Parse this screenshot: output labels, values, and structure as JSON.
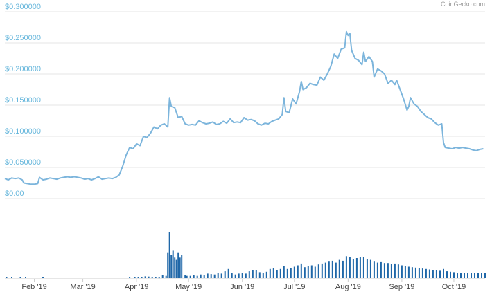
{
  "credit": "CoinGecko.com",
  "colors": {
    "price_line": "#7cb5dc",
    "volume_bar": "#1f67a8",
    "y_label": "#67b7dc",
    "grid": "#e6e6e6"
  },
  "chart_data": {
    "type": "line",
    "title": "",
    "xlabel": "",
    "ylabel": "",
    "x_range": [
      "2019-01-15",
      "2019-10-19"
    ],
    "ylim": [
      0,
      0.3
    ],
    "y_ticks": [
      "$0.00",
      "$0.050000",
      "$0.100000",
      "$0.150000",
      "$0.200000",
      "$0.250000",
      "$0.300000"
    ],
    "y_tick_values": [
      0,
      0.05,
      0.1,
      0.15,
      0.2,
      0.25,
      0.3
    ],
    "x_ticks": [
      {
        "label": "Feb '19",
        "date": "2019-02-01"
      },
      {
        "label": "Mar '19",
        "date": "2019-03-01"
      },
      {
        "label": "Apr '19",
        "date": "2019-04-01"
      },
      {
        "label": "May '19",
        "date": "2019-05-01"
      },
      {
        "label": "Jun '19",
        "date": "2019-06-01"
      },
      {
        "label": "Jul '19",
        "date": "2019-07-01"
      },
      {
        "label": "Aug '19",
        "date": "2019-08-01"
      },
      {
        "label": "Sep '19",
        "date": "2019-09-01"
      },
      {
        "label": "Oct '19",
        "date": "2019-10-01"
      }
    ],
    "grid": true,
    "series": [
      {
        "type": "line",
        "points": [
          [
            "2019-01-15",
            0.032
          ],
          [
            "2019-01-17",
            0.03
          ],
          [
            "2019-01-19",
            0.033
          ],
          [
            "2019-01-21",
            0.032
          ],
          [
            "2019-01-23",
            0.033
          ],
          [
            "2019-01-25",
            0.03
          ],
          [
            "2019-01-26",
            0.025
          ],
          [
            "2019-01-28",
            0.024
          ],
          [
            "2019-01-30",
            0.023
          ],
          [
            "2019-02-01",
            0.023
          ],
          [
            "2019-02-03",
            0.024
          ],
          [
            "2019-02-04",
            0.034
          ],
          [
            "2019-02-06",
            0.03
          ],
          [
            "2019-02-08",
            0.031
          ],
          [
            "2019-02-10",
            0.033
          ],
          [
            "2019-02-12",
            0.032
          ],
          [
            "2019-02-14",
            0.031
          ],
          [
            "2019-02-16",
            0.033
          ],
          [
            "2019-02-18",
            0.034
          ],
          [
            "2019-02-20",
            0.035
          ],
          [
            "2019-02-22",
            0.034
          ],
          [
            "2019-02-24",
            0.035
          ],
          [
            "2019-02-26",
            0.034
          ],
          [
            "2019-02-28",
            0.033
          ],
          [
            "2019-03-02",
            0.031
          ],
          [
            "2019-03-04",
            0.032
          ],
          [
            "2019-03-06",
            0.03
          ],
          [
            "2019-03-08",
            0.032
          ],
          [
            "2019-03-10",
            0.035
          ],
          [
            "2019-03-12",
            0.031
          ],
          [
            "2019-03-14",
            0.032
          ],
          [
            "2019-03-16",
            0.033
          ],
          [
            "2019-03-18",
            0.032
          ],
          [
            "2019-03-20",
            0.034
          ],
          [
            "2019-03-22",
            0.038
          ],
          [
            "2019-03-24",
            0.052
          ],
          [
            "2019-03-26",
            0.07
          ],
          [
            "2019-03-28",
            0.082
          ],
          [
            "2019-03-30",
            0.08
          ],
          [
            "2019-04-01",
            0.088
          ],
          [
            "2019-04-03",
            0.085
          ],
          [
            "2019-04-05",
            0.1
          ],
          [
            "2019-04-07",
            0.098
          ],
          [
            "2019-04-09",
            0.105
          ],
          [
            "2019-04-11",
            0.115
          ],
          [
            "2019-04-13",
            0.112
          ],
          [
            "2019-04-15",
            0.118
          ],
          [
            "2019-04-17",
            0.12
          ],
          [
            "2019-04-19",
            0.115
          ],
          [
            "2019-04-20",
            0.162
          ],
          [
            "2019-04-21",
            0.148
          ],
          [
            "2019-04-23",
            0.146
          ],
          [
            "2019-04-25",
            0.13
          ],
          [
            "2019-04-27",
            0.132
          ],
          [
            "2019-04-29",
            0.12
          ],
          [
            "2019-05-01",
            0.118
          ],
          [
            "2019-05-03",
            0.119
          ],
          [
            "2019-05-05",
            0.118
          ],
          [
            "2019-05-07",
            0.125
          ],
          [
            "2019-05-09",
            0.122
          ],
          [
            "2019-05-11",
            0.12
          ],
          [
            "2019-05-13",
            0.121
          ],
          [
            "2019-05-15",
            0.123
          ],
          [
            "2019-05-17",
            0.119
          ],
          [
            "2019-05-19",
            0.12
          ],
          [
            "2019-05-21",
            0.124
          ],
          [
            "2019-05-23",
            0.121
          ],
          [
            "2019-05-25",
            0.128
          ],
          [
            "2019-05-27",
            0.122
          ],
          [
            "2019-05-29",
            0.123
          ],
          [
            "2019-05-31",
            0.122
          ],
          [
            "2019-06-02",
            0.13
          ],
          [
            "2019-06-04",
            0.126
          ],
          [
            "2019-06-06",
            0.127
          ],
          [
            "2019-06-08",
            0.125
          ],
          [
            "2019-06-10",
            0.12
          ],
          [
            "2019-06-12",
            0.118
          ],
          [
            "2019-06-14",
            0.121
          ],
          [
            "2019-06-16",
            0.12
          ],
          [
            "2019-06-18",
            0.124
          ],
          [
            "2019-06-20",
            0.126
          ],
          [
            "2019-06-22",
            0.128
          ],
          [
            "2019-06-24",
            0.135
          ],
          [
            "2019-06-25",
            0.162
          ],
          [
            "2019-06-26",
            0.14
          ],
          [
            "2019-06-28",
            0.138
          ],
          [
            "2019-06-30",
            0.16
          ],
          [
            "2019-07-02",
            0.152
          ],
          [
            "2019-07-04",
            0.172
          ],
          [
            "2019-07-05",
            0.188
          ],
          [
            "2019-07-06",
            0.175
          ],
          [
            "2019-07-08",
            0.178
          ],
          [
            "2019-07-10",
            0.185
          ],
          [
            "2019-07-12",
            0.183
          ],
          [
            "2019-07-14",
            0.182
          ],
          [
            "2019-07-16",
            0.195
          ],
          [
            "2019-07-18",
            0.19
          ],
          [
            "2019-07-20",
            0.2
          ],
          [
            "2019-07-22",
            0.212
          ],
          [
            "2019-07-24",
            0.232
          ],
          [
            "2019-07-26",
            0.225
          ],
          [
            "2019-07-28",
            0.24
          ],
          [
            "2019-07-30",
            0.242
          ],
          [
            "2019-07-31",
            0.268
          ],
          [
            "2019-08-01",
            0.262
          ],
          [
            "2019-08-02",
            0.265
          ],
          [
            "2019-08-03",
            0.238
          ],
          [
            "2019-08-05",
            0.225
          ],
          [
            "2019-08-07",
            0.222
          ],
          [
            "2019-08-09",
            0.215
          ],
          [
            "2019-08-10",
            0.235
          ],
          [
            "2019-08-11",
            0.22
          ],
          [
            "2019-08-13",
            0.228
          ],
          [
            "2019-08-15",
            0.22
          ],
          [
            "2019-08-16",
            0.195
          ],
          [
            "2019-08-18",
            0.208
          ],
          [
            "2019-08-20",
            0.205
          ],
          [
            "2019-08-22",
            0.2
          ],
          [
            "2019-08-24",
            0.185
          ],
          [
            "2019-08-26",
            0.19
          ],
          [
            "2019-08-28",
            0.183
          ],
          [
            "2019-08-29",
            0.19
          ],
          [
            "2019-08-31",
            0.175
          ],
          [
            "2019-09-02",
            0.16
          ],
          [
            "2019-09-04",
            0.142
          ],
          [
            "2019-09-05",
            0.148
          ],
          [
            "2019-09-06",
            0.162
          ],
          [
            "2019-09-08",
            0.152
          ],
          [
            "2019-09-10",
            0.148
          ],
          [
            "2019-09-12",
            0.14
          ],
          [
            "2019-09-14",
            0.135
          ],
          [
            "2019-09-16",
            0.13
          ],
          [
            "2019-09-18",
            0.128
          ],
          [
            "2019-09-20",
            0.122
          ],
          [
            "2019-09-22",
            0.118
          ],
          [
            "2019-09-24",
            0.12
          ],
          [
            "2019-09-25",
            0.09
          ],
          [
            "2019-09-26",
            0.082
          ],
          [
            "2019-09-28",
            0.081
          ],
          [
            "2019-09-30",
            0.08
          ],
          [
            "2019-10-02",
            0.082
          ],
          [
            "2019-10-04",
            0.081
          ],
          [
            "2019-10-06",
            0.082
          ],
          [
            "2019-10-08",
            0.081
          ],
          [
            "2019-10-10",
            0.08
          ],
          [
            "2019-10-12",
            0.078
          ],
          [
            "2019-10-14",
            0.077
          ],
          [
            "2019-10-16",
            0.079
          ],
          [
            "2019-10-18",
            0.08
          ]
        ]
      }
    ],
    "volume": {
      "type": "bar",
      "bars": [
        [
          "2019-01-16",
          0.01
        ],
        [
          "2019-01-19",
          0.008
        ],
        [
          "2019-01-24",
          0.012
        ],
        [
          "2019-01-27",
          0.006
        ],
        [
          "2019-02-06",
          0.008
        ],
        [
          "2019-03-28",
          0.01
        ],
        [
          "2019-03-31",
          0.008
        ],
        [
          "2019-04-02",
          0.015
        ],
        [
          "2019-04-04",
          0.03
        ],
        [
          "2019-04-06",
          0.04
        ],
        [
          "2019-04-08",
          0.035
        ],
        [
          "2019-04-10",
          0.02
        ],
        [
          "2019-04-12",
          0.02
        ],
        [
          "2019-04-14",
          0.025
        ],
        [
          "2019-04-16",
          0.06
        ],
        [
          "2019-04-18",
          0.05
        ],
        [
          "2019-04-19",
          0.55
        ],
        [
          "2019-04-20",
          1.0
        ],
        [
          "2019-04-21",
          0.5
        ],
        [
          "2019-04-22",
          0.6
        ],
        [
          "2019-04-23",
          0.45
        ],
        [
          "2019-04-24",
          0.4
        ],
        [
          "2019-04-25",
          0.55
        ],
        [
          "2019-04-26",
          0.45
        ],
        [
          "2019-04-27",
          0.5
        ],
        [
          "2019-04-29",
          0.06
        ],
        [
          "2019-04-30",
          0.05
        ],
        [
          "2019-05-02",
          0.05
        ],
        [
          "2019-05-04",
          0.06
        ],
        [
          "2019-05-06",
          0.05
        ],
        [
          "2019-05-08",
          0.08
        ],
        [
          "2019-05-10",
          0.07
        ],
        [
          "2019-05-12",
          0.1
        ],
        [
          "2019-05-14",
          0.09
        ],
        [
          "2019-05-16",
          0.08
        ],
        [
          "2019-05-18",
          0.12
        ],
        [
          "2019-05-20",
          0.1
        ],
        [
          "2019-05-22",
          0.15
        ],
        [
          "2019-05-24",
          0.2
        ],
        [
          "2019-05-26",
          0.12
        ],
        [
          "2019-05-28",
          0.08
        ],
        [
          "2019-05-30",
          0.1
        ],
        [
          "2019-06-01",
          0.12
        ],
        [
          "2019-06-03",
          0.1
        ],
        [
          "2019-06-05",
          0.15
        ],
        [
          "2019-06-07",
          0.17
        ],
        [
          "2019-06-09",
          0.18
        ],
        [
          "2019-06-11",
          0.13
        ],
        [
          "2019-06-13",
          0.12
        ],
        [
          "2019-06-15",
          0.14
        ],
        [
          "2019-06-17",
          0.2
        ],
        [
          "2019-06-19",
          0.22
        ],
        [
          "2019-06-21",
          0.18
        ],
        [
          "2019-06-23",
          0.2
        ],
        [
          "2019-06-25",
          0.26
        ],
        [
          "2019-06-27",
          0.2
        ],
        [
          "2019-06-29",
          0.22
        ],
        [
          "2019-07-01",
          0.25
        ],
        [
          "2019-07-03",
          0.28
        ],
        [
          "2019-07-05",
          0.32
        ],
        [
          "2019-07-07",
          0.24
        ],
        [
          "2019-07-09",
          0.26
        ],
        [
          "2019-07-11",
          0.28
        ],
        [
          "2019-07-13",
          0.25
        ],
        [
          "2019-07-15",
          0.3
        ],
        [
          "2019-07-17",
          0.32
        ],
        [
          "2019-07-19",
          0.34
        ],
        [
          "2019-07-21",
          0.36
        ],
        [
          "2019-07-23",
          0.38
        ],
        [
          "2019-07-25",
          0.34
        ],
        [
          "2019-07-27",
          0.4
        ],
        [
          "2019-07-29",
          0.38
        ],
        [
          "2019-07-31",
          0.48
        ],
        [
          "2019-08-02",
          0.46
        ],
        [
          "2019-08-04",
          0.42
        ],
        [
          "2019-08-06",
          0.44
        ],
        [
          "2019-08-08",
          0.46
        ],
        [
          "2019-08-10",
          0.46
        ],
        [
          "2019-08-12",
          0.42
        ],
        [
          "2019-08-14",
          0.4
        ],
        [
          "2019-08-16",
          0.36
        ],
        [
          "2019-08-18",
          0.34
        ],
        [
          "2019-08-20",
          0.35
        ],
        [
          "2019-08-22",
          0.33
        ],
        [
          "2019-08-24",
          0.33
        ],
        [
          "2019-08-26",
          0.31
        ],
        [
          "2019-08-28",
          0.32
        ],
        [
          "2019-08-30",
          0.3
        ],
        [
          "2019-09-01",
          0.28
        ],
        [
          "2019-09-03",
          0.26
        ],
        [
          "2019-09-05",
          0.25
        ],
        [
          "2019-09-07",
          0.24
        ],
        [
          "2019-09-09",
          0.23
        ],
        [
          "2019-09-11",
          0.22
        ],
        [
          "2019-09-13",
          0.21
        ],
        [
          "2019-09-15",
          0.2
        ],
        [
          "2019-09-17",
          0.19
        ],
        [
          "2019-09-19",
          0.18
        ],
        [
          "2019-09-21",
          0.18
        ],
        [
          "2019-09-23",
          0.16
        ],
        [
          "2019-09-25",
          0.2
        ],
        [
          "2019-09-27",
          0.15
        ],
        [
          "2019-09-29",
          0.14
        ],
        [
          "2019-10-01",
          0.13
        ],
        [
          "2019-10-03",
          0.12
        ],
        [
          "2019-10-05",
          0.12
        ],
        [
          "2019-10-07",
          0.11
        ],
        [
          "2019-10-09",
          0.12
        ],
        [
          "2019-10-11",
          0.11
        ],
        [
          "2019-10-13",
          0.12
        ],
        [
          "2019-10-15",
          0.11
        ],
        [
          "2019-10-17",
          0.11
        ],
        [
          "2019-10-19",
          0.11
        ]
      ]
    }
  }
}
